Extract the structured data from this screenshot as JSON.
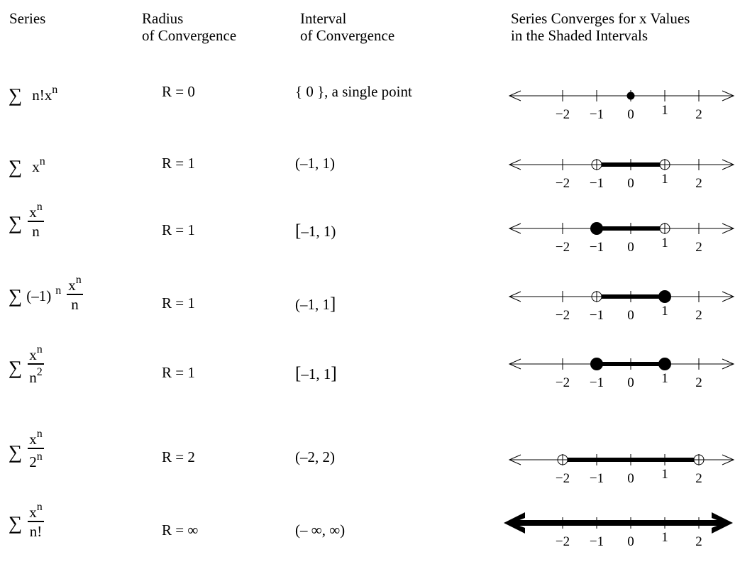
{
  "header": {
    "series": "Series",
    "radius_l1": "Radius",
    "radius_l2": "of Convergence",
    "interval_l1": "Interval",
    "interval_l2": "of Convergence",
    "shaded_l1": "Series Converges for x Values",
    "shaded_l2": "in the Shaded Intervals"
  },
  "sigma": "∑",
  "tick_labels": [
    "−2",
    "−1",
    "0",
    "1",
    "2"
  ],
  "rows": [
    {
      "series": {
        "kind": "plain",
        "main": "n!x",
        "sup": "n"
      },
      "radius": "R = 0",
      "interval": "{ 0 }, a single point",
      "interval_parts": [
        "{ 0 }, a single point"
      ],
      "line": {
        "type": "point",
        "at": 0
      }
    },
    {
      "series": {
        "kind": "plain",
        "main": "x",
        "sup": "n"
      },
      "radius": "R = 1",
      "interval": "(–1, 1)",
      "interval_parts": [
        "(–1, 1)"
      ],
      "line": {
        "type": "interval",
        "from": -1,
        "to": 1,
        "left": "open",
        "right": "open"
      }
    },
    {
      "series": {
        "kind": "frac",
        "num": "x",
        "num_sup": "n",
        "den": "n",
        "den_sup": ""
      },
      "radius": "R = 1",
      "interval": "[–1, 1)",
      "interval_parts": [
        "[",
        "–1, 1)"
      ],
      "line": {
        "type": "interval",
        "from": -1,
        "to": 1,
        "left": "closed",
        "right": "open"
      }
    },
    {
      "series": {
        "kind": "frac",
        "prefix": "(–1)",
        "prefix_sup": "n",
        "num": "x",
        "num_sup": "n",
        "den": "n",
        "den_sup": ""
      },
      "radius": "R = 1",
      "interval": "(–1, 1]",
      "interval_parts": [
        "(–1, 1",
        "]"
      ],
      "line": {
        "type": "interval",
        "from": -1,
        "to": 1,
        "left": "open",
        "right": "closed"
      }
    },
    {
      "series": {
        "kind": "frac",
        "num": "x",
        "num_sup": "n",
        "den": "n",
        "den_sup": "2"
      },
      "radius": "R = 1",
      "interval": "[–1, 1]",
      "interval_parts": [
        "[",
        "–1, 1",
        "]"
      ],
      "line": {
        "type": "interval",
        "from": -1,
        "to": 1,
        "left": "closed",
        "right": "closed"
      }
    },
    {
      "series": {
        "kind": "frac",
        "num": "x",
        "num_sup": "n",
        "den": "2",
        "den_sup": "n"
      },
      "radius": "R = 2",
      "interval": "(–2, 2)",
      "interval_parts": [
        "(–2, 2)"
      ],
      "line": {
        "type": "interval",
        "from": -2,
        "to": 2,
        "left": "open",
        "right": "open"
      }
    },
    {
      "series": {
        "kind": "frac",
        "num": "x",
        "num_sup": "n",
        "den": "n!",
        "den_sup": ""
      },
      "radius": "R = ∞",
      "interval": "(– ∞, ∞)",
      "interval_parts": [
        "(– ∞, ∞)"
      ],
      "line": {
        "type": "all"
      }
    }
  ]
}
